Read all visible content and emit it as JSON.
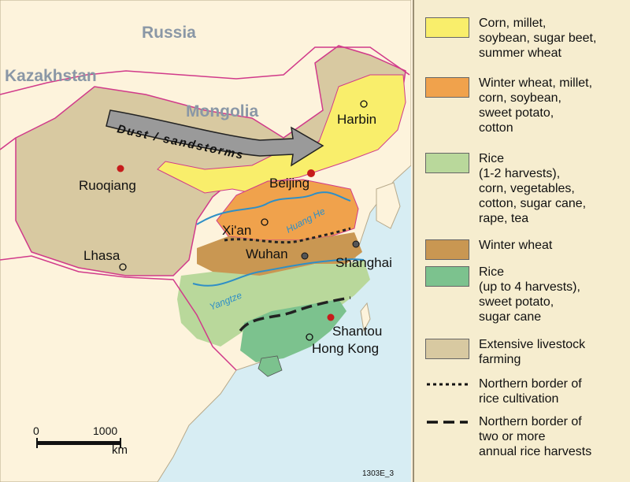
{
  "map": {
    "countries": {
      "russia": "Russia",
      "kazakhstan": "Kazakhstan",
      "mongolia": "Mongolia"
    },
    "arrow_label": "Dust / sandstorms",
    "cities": {
      "harbin": "Harbin",
      "beijing": "Beijing",
      "ruoqiang": "Ruoqiang",
      "xian": "Xi'an",
      "wuhan": "Wuhan",
      "lhasa": "Lhasa",
      "shanghai": "Shanghai",
      "shantou": "Shantou",
      "hong_kong": "Hong Kong"
    },
    "rivers": {
      "huang_he": "Huang He",
      "yangtze": "Yangtze"
    },
    "scale": {
      "start": "0",
      "end": "1000",
      "unit": "km"
    },
    "code": "1303E_3",
    "colors": {
      "sea": "#d7edf3",
      "land_other": "#fdf3dc",
      "livestock": "#d8c9a1",
      "corn_millet": "#f9ee6b",
      "winter_wheat_millet": "#f0a24c",
      "rice_1_2": "#b9d89b",
      "winter_wheat": "#c99752",
      "rice_4": "#7cc28e",
      "borders": "#d13a8a"
    }
  },
  "legend": {
    "items": [
      {
        "label": "Corn, millet,\nsoybean, sugar beet,\nsummer wheat",
        "color": "#f9ee6b"
      },
      {
        "label": "Winter wheat, millet,\ncorn, soybean,\nsweet potato,\ncotton",
        "color": "#f0a24c"
      },
      {
        "label": "Rice\n(1-2 harvests),\ncorn, vegetables,\ncotton, sugar cane,\nrape, tea",
        "color": "#b9d89b"
      },
      {
        "label": "Winter wheat",
        "color": "#c99752"
      },
      {
        "label": "Rice\n(up to 4 harvests),\nsweet potato,\nsugar cane",
        "color": "#7cc28e"
      },
      {
        "label": "Extensive livestock\nfarming",
        "color": "#d8c9a1"
      },
      {
        "label": "Northern border of\nrice cultivation",
        "line": "dotted"
      },
      {
        "label": "Northern border of\ntwo or more\nannual rice harvests",
        "line": "dashed"
      }
    ]
  }
}
